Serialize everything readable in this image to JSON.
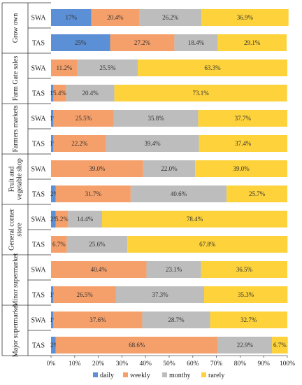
{
  "chart_data": {
    "type": "bar",
    "orientation": "horizontal",
    "stacked": true,
    "percent_stacked": true,
    "groups": [
      {
        "name": "Grow own",
        "rows": [
          {
            "name": "SWA",
            "values": [
              17.0,
              20.4,
              26.2,
              36.9
            ],
            "labels": [
              "17%",
              "20.4%",
              "26.2%",
              "36.9%"
            ]
          },
          {
            "name": "TAS",
            "values": [
              25.0,
              27.2,
              18.4,
              29.1
            ],
            "labels": [
              "25%",
              "27.2%",
              "18.4%",
              "29.1%"
            ]
          }
        ]
      },
      {
        "name": "Farm Gate sales",
        "rows": [
          {
            "name": "SWA",
            "values": [
              0,
              11.2,
              25.5,
              63.3
            ],
            "labels": [
              "",
              "11.2%",
              "25.5%",
              "63.3%"
            ]
          },
          {
            "name": "TAS",
            "values": [
              1.0,
              5.4,
              20.4,
              73.1
            ],
            "labels": [
              "1%",
              "5.4%",
              "20.4%",
              "73.1%"
            ]
          }
        ]
      },
      {
        "name": "Farmers markets",
        "rows": [
          {
            "name": "SWA",
            "values": [
              1.0,
              25.5,
              35.8,
              37.7
            ],
            "labels": [
              "1%",
              "25.5%",
              "35.8%",
              "37.7%"
            ]
          },
          {
            "name": "TAS",
            "values": [
              1.0,
              22.2,
              39.4,
              37.4
            ],
            "labels": [
              "1%",
              "22.2%",
              "39.4%",
              "37.4%"
            ]
          }
        ]
      },
      {
        "name": "Fruit and vegetable shop",
        "rows": [
          {
            "name": "SWA",
            "values": [
              0,
              39.0,
              22.0,
              39.0
            ],
            "labels": [
              "",
              "39.0%",
              "22.0%",
              "39.0%"
            ]
          },
          {
            "name": "TAS",
            "values": [
              2.0,
              31.7,
              40.6,
              25.7
            ],
            "labels": [
              "2%",
              "31.7%",
              "40.6%",
              "25.7%"
            ]
          }
        ]
      },
      {
        "name": "General corner store",
        "rows": [
          {
            "name": "SWA",
            "values": [
              2.0,
              5.2,
              14.4,
              78.4
            ],
            "labels": [
              "2%",
              "5.2%",
              "14.4%",
              "78.4%"
            ]
          },
          {
            "name": "TAS",
            "values": [
              0,
              6.7,
              25.6,
              67.8
            ],
            "labels": [
              "",
              "6.7%",
              "25.6%",
              "67.8%"
            ]
          }
        ]
      },
      {
        "name": "Minor supermarket",
        "rows": [
          {
            "name": "SWA",
            "values": [
              0,
              40.4,
              23.1,
              36.5
            ],
            "labels": [
              "",
              "40.4%",
              "23.1%",
              "36.5%"
            ]
          },
          {
            "name": "TAS",
            "values": [
              1.0,
              26.5,
              37.3,
              35.3
            ],
            "labels": [
              "1%",
              "26.5%",
              "37.3%",
              "35.3%"
            ]
          }
        ]
      },
      {
        "name": "Major supermarket",
        "rows": [
          {
            "name": "SWA",
            "values": [
              1.0,
              37.6,
              28.7,
              32.7
            ],
            "labels": [
              "1%",
              "37.6%",
              "28.7%",
              "32.7%"
            ]
          },
          {
            "name": "TAS",
            "values": [
              2.0,
              68.6,
              22.9,
              6.7
            ],
            "labels": [
              "2%",
              "68.6%",
              "22.9%",
              "6.7%"
            ]
          }
        ]
      }
    ],
    "series": [
      {
        "name": "daily",
        "color": "#5b8fd6"
      },
      {
        "name": "weekly",
        "color": "#f5a06a"
      },
      {
        "name": "monthy",
        "color": "#bdbdbd"
      },
      {
        "name": "rarely",
        "color": "#fdd23a"
      }
    ],
    "xlim": [
      0,
      100
    ],
    "xticks": [
      "0%",
      "10%",
      "20%",
      "30%",
      "40%",
      "50%",
      "60%",
      "70%",
      "80%",
      "90%",
      "100%"
    ],
    "legend_position": "bottom",
    "grid": false
  }
}
